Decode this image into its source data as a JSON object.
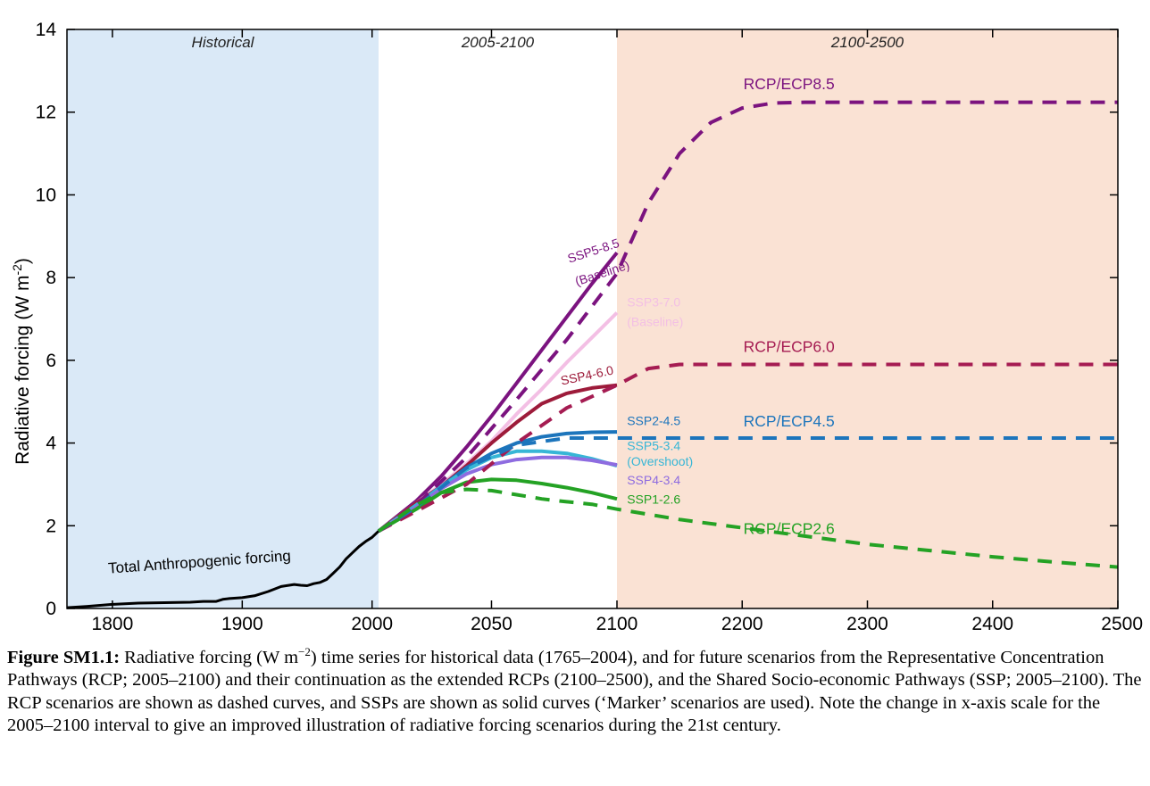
{
  "chart_data": {
    "type": "line",
    "title": "",
    "ylabel": "Radiative forcing (W m",
    "ylabel_sup": "-2",
    "ylabel_close": ")",
    "xlabel": "",
    "ylim": [
      0,
      14
    ],
    "xlim": [
      1765,
      2500
    ],
    "grid": false,
    "y_ticks": [
      "0",
      "2",
      "4",
      "6",
      "8",
      "10",
      "12",
      "14"
    ],
    "x_ticks": [
      "1800",
      "1900",
      "2000",
      "2050",
      "2100",
      "2200",
      "2300",
      "2400",
      "2500"
    ],
    "regions": [
      {
        "label": "Historical",
        "from": 1765,
        "to": 2005,
        "color": "#dae9f7"
      },
      {
        "label": "2005-2100",
        "from": 2005,
        "to": 2100,
        "color": "#ffffff"
      },
      {
        "label": "2100-2500",
        "from": 2100,
        "to": 2500,
        "color": "#fae2d4"
      }
    ],
    "series": [
      {
        "key": "hist",
        "style": "solid",
        "color": "#000000",
        "x": [
          1765,
          1780,
          1800,
          1820,
          1840,
          1860,
          1870,
          1880,
          1885,
          1890,
          1900,
          1910,
          1920,
          1930,
          1940,
          1945,
          1950,
          1955,
          1960,
          1965,
          1970,
          1975,
          1980,
          1985,
          1990,
          1995,
          2000,
          2005
        ],
        "y": [
          0.02,
          0.05,
          0.1,
          0.13,
          0.14,
          0.15,
          0.17,
          0.17,
          0.22,
          0.24,
          0.26,
          0.31,
          0.41,
          0.53,
          0.58,
          0.56,
          0.55,
          0.6,
          0.63,
          0.7,
          0.85,
          1.0,
          1.2,
          1.35,
          1.5,
          1.62,
          1.72,
          1.87
        ]
      },
      {
        "key": "ssp585",
        "style": "solid",
        "color": "#7b137f",
        "x": [
          2005,
          2020,
          2030,
          2040,
          2050,
          2060,
          2070,
          2080,
          2090,
          2100
        ],
        "y": [
          1.87,
          2.6,
          3.2,
          3.9,
          4.65,
          5.45,
          6.25,
          7.05,
          7.85,
          8.6
        ]
      },
      {
        "key": "ssp370",
        "style": "solid",
        "color": "#f3bfe4",
        "x": [
          2005,
          2020,
          2030,
          2040,
          2050,
          2060,
          2070,
          2080,
          2090,
          2100
        ],
        "y": [
          1.87,
          2.55,
          3.0,
          3.5,
          4.05,
          4.7,
          5.3,
          5.95,
          6.55,
          7.15
        ]
      },
      {
        "key": "ssp460",
        "style": "solid",
        "color": "#9d1b3a",
        "x": [
          2005,
          2020,
          2030,
          2040,
          2050,
          2060,
          2070,
          2080,
          2090,
          2100
        ],
        "y": [
          1.87,
          2.55,
          2.95,
          3.45,
          4.0,
          4.5,
          4.95,
          5.2,
          5.33,
          5.4
        ]
      },
      {
        "key": "ssp245",
        "style": "solid",
        "color": "#1c75bc",
        "x": [
          2005,
          2020,
          2030,
          2040,
          2050,
          2060,
          2070,
          2080,
          2090,
          2100
        ],
        "y": [
          1.87,
          2.5,
          2.95,
          3.4,
          3.75,
          4.0,
          4.15,
          4.23,
          4.26,
          4.27
        ]
      },
      {
        "key": "ssp534",
        "style": "solid",
        "color": "#37b6d6",
        "x": [
          2005,
          2020,
          2030,
          2040,
          2050,
          2060,
          2070,
          2080,
          2090,
          2100
        ],
        "y": [
          1.87,
          2.5,
          2.95,
          3.35,
          3.65,
          3.8,
          3.8,
          3.75,
          3.62,
          3.45
        ]
      },
      {
        "key": "ssp434",
        "style": "solid",
        "color": "#8e6ce0",
        "x": [
          2005,
          2020,
          2030,
          2040,
          2050,
          2060,
          2070,
          2080,
          2090,
          2100
        ],
        "y": [
          1.87,
          2.45,
          2.9,
          3.25,
          3.48,
          3.6,
          3.65,
          3.65,
          3.58,
          3.47
        ]
      },
      {
        "key": "ssp126",
        "style": "solid",
        "color": "#24a224",
        "x": [
          2005,
          2020,
          2030,
          2040,
          2050,
          2060,
          2070,
          2080,
          2090,
          2100
        ],
        "y": [
          1.87,
          2.4,
          2.8,
          3.05,
          3.12,
          3.1,
          3.02,
          2.92,
          2.8,
          2.65
        ]
      },
      {
        "key": "rcp85",
        "style": "dashed",
        "color": "#7b137f",
        "x": [
          2005,
          2020,
          2040,
          2060,
          2080,
          2100,
          2125,
          2150,
          2175,
          2200,
          2225,
          2250,
          2300,
          2400,
          2500
        ],
        "y": [
          1.87,
          2.5,
          3.65,
          5.05,
          6.5,
          8.1,
          9.8,
          11.0,
          11.75,
          12.1,
          12.22,
          12.24,
          12.24,
          12.24,
          12.24
        ]
      },
      {
        "key": "rcp60",
        "style": "dashed",
        "color": "#a51c52",
        "x": [
          2005,
          2020,
          2040,
          2060,
          2080,
          2100,
          2125,
          2150,
          2200,
          2300,
          2400,
          2500
        ],
        "y": [
          1.87,
          2.35,
          3.0,
          4.0,
          4.85,
          5.4,
          5.8,
          5.9,
          5.9,
          5.9,
          5.9,
          5.9
        ]
      },
      {
        "key": "rcp45",
        "style": "dashed",
        "color": "#1c75bc",
        "x": [
          2005,
          2020,
          2040,
          2060,
          2080,
          2100,
          2125,
          2150,
          2200,
          2300,
          2400,
          2500
        ],
        "y": [
          1.87,
          2.45,
          3.4,
          3.95,
          4.12,
          4.12,
          4.12,
          4.12,
          4.12,
          4.12,
          4.12,
          4.12
        ]
      },
      {
        "key": "rcp26",
        "style": "dashed",
        "color": "#24a224",
        "x": [
          2005,
          2020,
          2030,
          2040,
          2050,
          2060,
          2070,
          2080,
          2090,
          2100,
          2150,
          2200,
          2250,
          2300,
          2350,
          2400,
          2450,
          2500
        ],
        "y": [
          1.87,
          2.5,
          2.8,
          2.88,
          2.85,
          2.75,
          2.65,
          2.58,
          2.52,
          2.4,
          2.15,
          1.95,
          1.75,
          1.55,
          1.4,
          1.25,
          1.12,
          1.0
        ]
      }
    ],
    "labels": [
      {
        "text": "Total Anthropogenic forcing",
        "color": "#000000",
        "size": 17,
        "rot": -4,
        "at": [
          1797,
          0.85
        ]
      },
      {
        "text": "SSP5-8.5",
        "color": "#7b137f",
        "size": 14,
        "rot": -18,
        "at": [
          2081,
          8.35
        ]
      },
      {
        "text": "(Baseline)",
        "color": "#7b137f",
        "size": 14,
        "rot": -18,
        "at": [
          2084,
          7.8
        ]
      },
      {
        "text": "SSP3-7.0",
        "color": "#f3bfe4",
        "size": 14,
        "rot": 0,
        "at": [
          2108,
          7.3
        ]
      },
      {
        "text": "(Baseline)",
        "color": "#f3bfe4",
        "size": 14,
        "rot": 0,
        "at": [
          2108,
          6.83
        ]
      },
      {
        "text": "SSP4-6.0",
        "color": "#9d1b3a",
        "size": 14,
        "rot": -12,
        "at": [
          2078,
          5.4
        ]
      },
      {
        "text": "SSP2-4.5",
        "color": "#1c75bc",
        "size": 14,
        "rot": 0,
        "at": [
          2108,
          4.43
        ]
      },
      {
        "text": "SSP5-3.4",
        "color": "#37b6d6",
        "size": 14,
        "rot": 0,
        "at": [
          2108,
          3.83
        ]
      },
      {
        "text": "(Overshoot)",
        "color": "#37b6d6",
        "size": 14,
        "rot": 0,
        "at": [
          2108,
          3.45
        ]
      },
      {
        "text": "SSP4-3.4",
        "color": "#8e6ce0",
        "size": 14,
        "rot": 0,
        "at": [
          2108,
          3.0
        ]
      },
      {
        "text": "SSP1-2.6",
        "color": "#24a224",
        "size": 14,
        "rot": 0,
        "at": [
          2108,
          2.53
        ]
      },
      {
        "text": "RCP/ECP8.5",
        "color": "#7b137f",
        "size": 17.5,
        "rot": 0,
        "at": [
          2201,
          12.55
        ]
      },
      {
        "text": "RCP/ECP6.0",
        "color": "#a51c52",
        "size": 17.5,
        "rot": 0,
        "at": [
          2201,
          6.2
        ]
      },
      {
        "text": "RCP/ECP4.5",
        "color": "#1c75bc",
        "size": 17.5,
        "rot": 0,
        "at": [
          2201,
          4.4
        ]
      },
      {
        "text": "RCP/ECP2.6",
        "color": "#24a224",
        "size": 17.5,
        "rot": 0,
        "at": [
          2201,
          1.8
        ]
      }
    ]
  },
  "caption": {
    "label": "Figure SM1.1:",
    "text_a": " Radiative forcing (W m",
    "sup": "−2",
    "text_b": ") time series for historical data (1765–2004), and for future scenarios from the Representative Concentration Pathways (RCP; 2005–2100) and their continuation as the extended RCPs (2100–2500), and the Shared Socio-economic Pathways (SSP; 2005–2100). The RCP scenarios are shown as dashed curves, and SSPs are shown as solid curves (‘Marker’ scenarios are used). Note the change in x-axis scale for the 2005–2100 interval to give an improved illustration of radiative forcing scenarios during the 21st century."
  }
}
